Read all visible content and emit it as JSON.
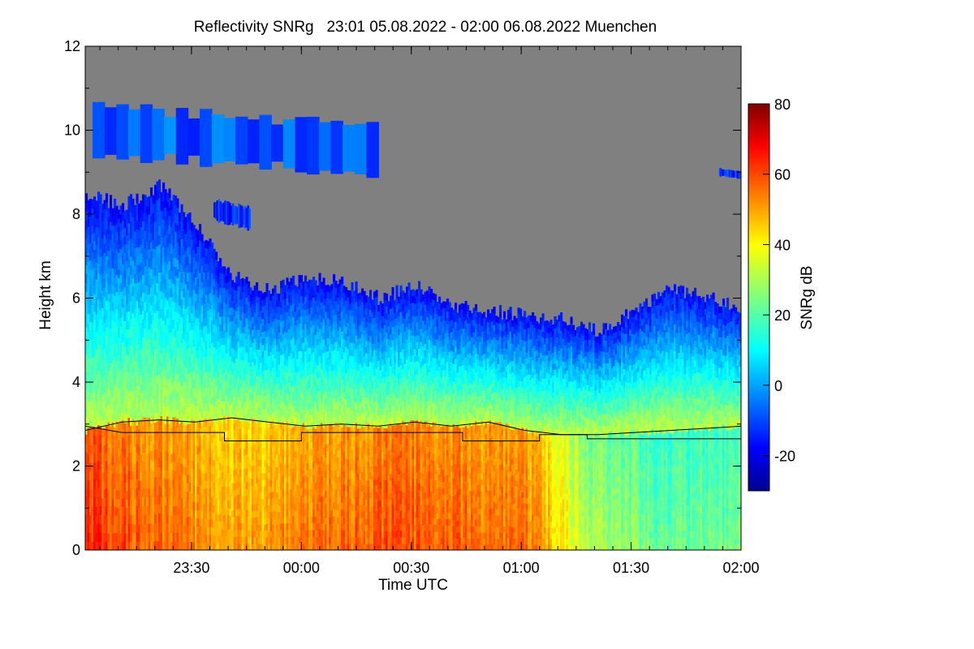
{
  "chart_data": {
    "type": "heatmap",
    "title": "Reflectivity SNRg   23:01 05.08.2022 - 02:00 06.08.2022 Muenchen",
    "xlabel": "Time UTC",
    "ylabel": "Height km",
    "colorbar_label": "SNRg dB",
    "xlim": [
      "23:01",
      "02:00"
    ],
    "ylim": [
      0,
      12
    ],
    "x_ticks": [
      {
        "t": 29,
        "label": "23:30"
      },
      {
        "t": 59,
        "label": "00:00"
      },
      {
        "t": 89,
        "label": "00:30"
      },
      {
        "t": 119,
        "label": "01:00"
      },
      {
        "t": 149,
        "label": "01:30"
      },
      {
        "t": 179,
        "label": "02:00"
      }
    ],
    "y_ticks": [
      0,
      2,
      4,
      6,
      8,
      10,
      12
    ],
    "colorbar": {
      "min": -30,
      "max": 80,
      "ticks": [
        -20,
        0,
        20,
        40,
        60,
        80
      ],
      "colormap": "jet",
      "no_signal_color": "#808080"
    },
    "cloud_top_km": [
      {
        "t": 0,
        "h": 8.5
      },
      {
        "t": 10,
        "h": 8.2
      },
      {
        "t": 20,
        "h": 8.7
      },
      {
        "t": 30,
        "h": 7.8
      },
      {
        "t": 40,
        "h": 6.5
      },
      {
        "t": 50,
        "h": 6.2
      },
      {
        "t": 60,
        "h": 6.5
      },
      {
        "t": 70,
        "h": 6.4
      },
      {
        "t": 80,
        "h": 6.0
      },
      {
        "t": 90,
        "h": 6.3
      },
      {
        "t": 100,
        "h": 5.8
      },
      {
        "t": 110,
        "h": 5.7
      },
      {
        "t": 120,
        "h": 5.6
      },
      {
        "t": 130,
        "h": 5.5
      },
      {
        "t": 140,
        "h": 5.2
      },
      {
        "t": 150,
        "h": 5.8
      },
      {
        "t": 160,
        "h": 6.2
      },
      {
        "t": 170,
        "h": 6.0
      },
      {
        "t": 179,
        "h": 5.8
      }
    ],
    "upper_cloud_layer": {
      "t_start": 2,
      "t_end": 80,
      "h_low": 9.3,
      "h_high": 10.7,
      "peak_snr_db": 0
    },
    "mid_cloud_patch": {
      "t_start": 35,
      "t_end": 45,
      "h_low": 7.8,
      "h_high": 8.4
    },
    "right_cloud_patch": {
      "t_start": 173,
      "t_end": 179,
      "h_low": 8.9,
      "h_high": 9.1
    },
    "melting_layer_km": [
      {
        "t": 0,
        "h": 2.85
      },
      {
        "t": 10,
        "h": 3.05
      },
      {
        "t": 20,
        "h": 3.1
      },
      {
        "t": 30,
        "h": 3.05
      },
      {
        "t": 40,
        "h": 3.15
      },
      {
        "t": 50,
        "h": 3.05
      },
      {
        "t": 60,
        "h": 2.95
      },
      {
        "t": 70,
        "h": 3.0
      },
      {
        "t": 80,
        "h": 2.95
      },
      {
        "t": 90,
        "h": 3.05
      },
      {
        "t": 100,
        "h": 2.95
      },
      {
        "t": 110,
        "h": 3.05
      },
      {
        "t": 120,
        "h": 2.85
      },
      {
        "t": 130,
        "h": 2.75
      },
      {
        "t": 140,
        "h": 2.75
      },
      {
        "t": 150,
        "h": 2.8
      },
      {
        "t": 160,
        "h": 2.85
      },
      {
        "t": 170,
        "h": 2.9
      },
      {
        "t": 179,
        "h": 2.95
      }
    ],
    "freezing_level_km": [
      {
        "t": 0,
        "h": 2.95
      },
      {
        "t": 10,
        "h": 2.8
      },
      {
        "t": 38,
        "h": 2.8
      },
      {
        "t": 38,
        "h": 2.6
      },
      {
        "t": 59,
        "h": 2.6
      },
      {
        "t": 59,
        "h": 2.8
      },
      {
        "t": 103,
        "h": 2.8
      },
      {
        "t": 103,
        "h": 2.6
      },
      {
        "t": 124,
        "h": 2.6
      },
      {
        "t": 124,
        "h": 2.75
      },
      {
        "t": 137,
        "h": 2.75
      },
      {
        "t": 137,
        "h": 2.65
      },
      {
        "t": 179,
        "h": 2.65
      }
    ],
    "precip_core_snr_db": [
      {
        "t": 0,
        "v": 62
      },
      {
        "t": 20,
        "v": 55
      },
      {
        "t": 40,
        "v": 48
      },
      {
        "t": 60,
        "v": 52
      },
      {
        "t": 80,
        "v": 58
      },
      {
        "t": 100,
        "v": 56
      },
      {
        "t": 120,
        "v": 54
      },
      {
        "t": 140,
        "v": 28
      },
      {
        "t": 160,
        "v": 22
      },
      {
        "t": 179,
        "v": 24
      }
    ]
  }
}
